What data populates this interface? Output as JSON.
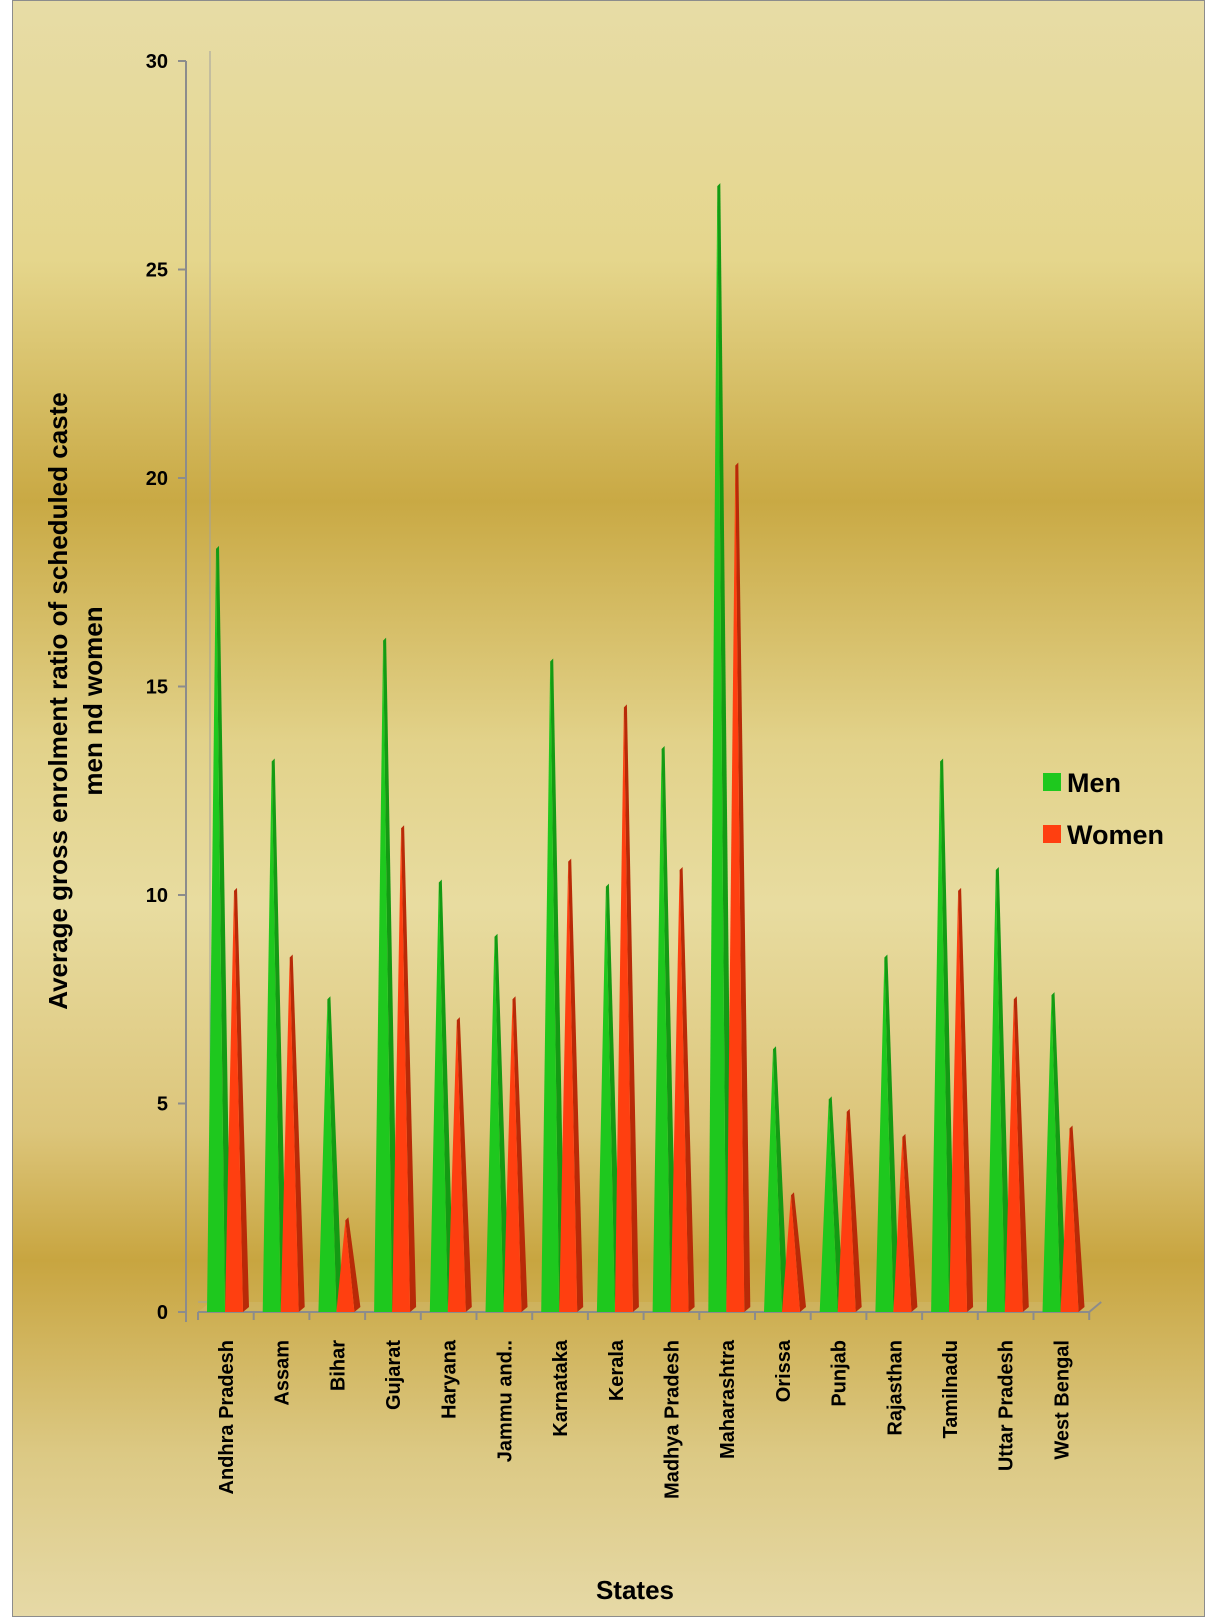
{
  "chart_data": {
    "type": "bar",
    "title": "",
    "xlabel": "States",
    "ylabel": [
      "Average gross enrolment ratio of scheduled caste",
      "men nd women"
    ],
    "ylim": [
      0,
      30
    ],
    "yticks": [
      "0",
      "5",
      "10",
      "15",
      "20",
      "25",
      "30"
    ],
    "categories": [
      "Andhra Pradesh",
      "Assam",
      "Bihar",
      "Gujarat",
      "Haryana",
      "Jammu and..",
      "Karnataka",
      "Kerala",
      "Madhya Pradesh",
      "Maharashtra",
      "Orissa",
      "Punjab",
      "Rajasthan",
      "Tamilnadu",
      "Uttar Pradesh",
      "West Bengal"
    ],
    "series": [
      {
        "name": "Men",
        "color": "#1ec81e",
        "values": [
          18.3,
          13.2,
          7.5,
          16.1,
          10.3,
          9.0,
          15.6,
          10.2,
          13.5,
          27.0,
          6.3,
          5.1,
          8.5,
          13.2,
          10.6,
          7.6
        ]
      },
      {
        "name": "Women",
        "color": "#ff3f10",
        "values": [
          10.1,
          8.5,
          2.2,
          11.6,
          7.0,
          7.5,
          10.8,
          14.5,
          10.6,
          20.3,
          2.8,
          4.8,
          4.2,
          10.1,
          7.5,
          4.4
        ]
      }
    ],
    "legend": "right",
    "grid": false
  }
}
